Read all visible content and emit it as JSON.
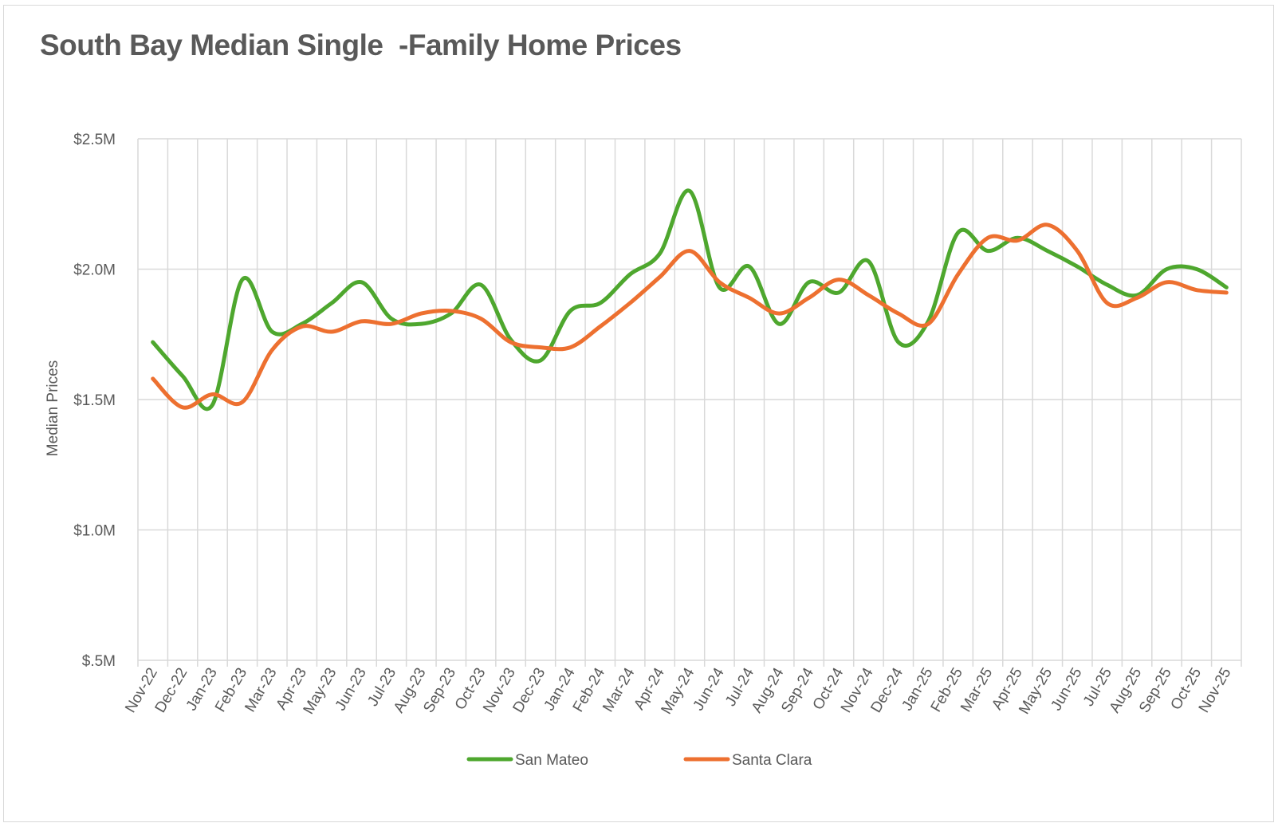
{
  "chart_data": {
    "type": "line",
    "title": "South Bay Median Single  -Family Home Prices",
    "xlabel": "",
    "ylabel": "Median Prices",
    "ylim": [
      0.5,
      2.5
    ],
    "yticks": [
      {
        "value": 2.5,
        "label": "$2.5M"
      },
      {
        "value": 2.0,
        "label": "$2.0M"
      },
      {
        "value": 1.5,
        "label": "$1.5M"
      },
      {
        "value": 1.0,
        "label": "$1.0M"
      },
      {
        "value": 0.5,
        "label": "$.5M"
      }
    ],
    "grid": true,
    "smooth": true,
    "legend_position": "bottom",
    "categories": [
      "Nov-22",
      "Dec-22",
      "Jan-23",
      "Feb-23",
      "Mar-23",
      "Apr-23",
      "May-23",
      "Jun-23",
      "Jul-23",
      "Aug-23",
      "Sep-23",
      "Oct-23",
      "Nov-23",
      "Dec-23",
      "Jan-24",
      "Feb-24",
      "Mar-24",
      "Apr-24",
      "May-24",
      "Jun-24",
      "Jul-24",
      "Aug-24",
      "Sep-24",
      "Oct-24",
      "Nov-24",
      "Dec-24",
      "Jan-25",
      "Feb-25",
      "Mar-25",
      "Apr-25",
      "May-25",
      "Jun-25",
      "Jul-25",
      "Aug-25",
      "Sep-25",
      "Oct-25",
      "Nov-25"
    ],
    "series": [
      {
        "name": "San Mateo",
        "color": "#4ea72e",
        "values": [
          1.72,
          1.59,
          1.48,
          1.96,
          1.76,
          1.79,
          1.87,
          1.95,
          1.81,
          1.79,
          1.83,
          1.94,
          1.73,
          1.65,
          1.84,
          1.87,
          1.98,
          2.06,
          2.3,
          1.93,
          2.01,
          1.79,
          1.95,
          1.91,
          2.03,
          1.72,
          1.8,
          2.14,
          2.07,
          2.12,
          2.07,
          2.01,
          1.94,
          1.9,
          2.0,
          2.0,
          1.93
        ]
      },
      {
        "name": "Santa Clara",
        "color": "#ed7030",
        "values": [
          1.58,
          1.47,
          1.52,
          1.49,
          1.69,
          1.78,
          1.76,
          1.8,
          1.79,
          1.83,
          1.84,
          1.81,
          1.72,
          1.7,
          1.7,
          1.78,
          1.87,
          1.97,
          2.07,
          1.95,
          1.89,
          1.83,
          1.89,
          1.96,
          1.9,
          1.83,
          1.79,
          1.98,
          2.12,
          2.11,
          2.17,
          2.07,
          1.87,
          1.89,
          1.95,
          1.92,
          1.91
        ]
      }
    ]
  }
}
